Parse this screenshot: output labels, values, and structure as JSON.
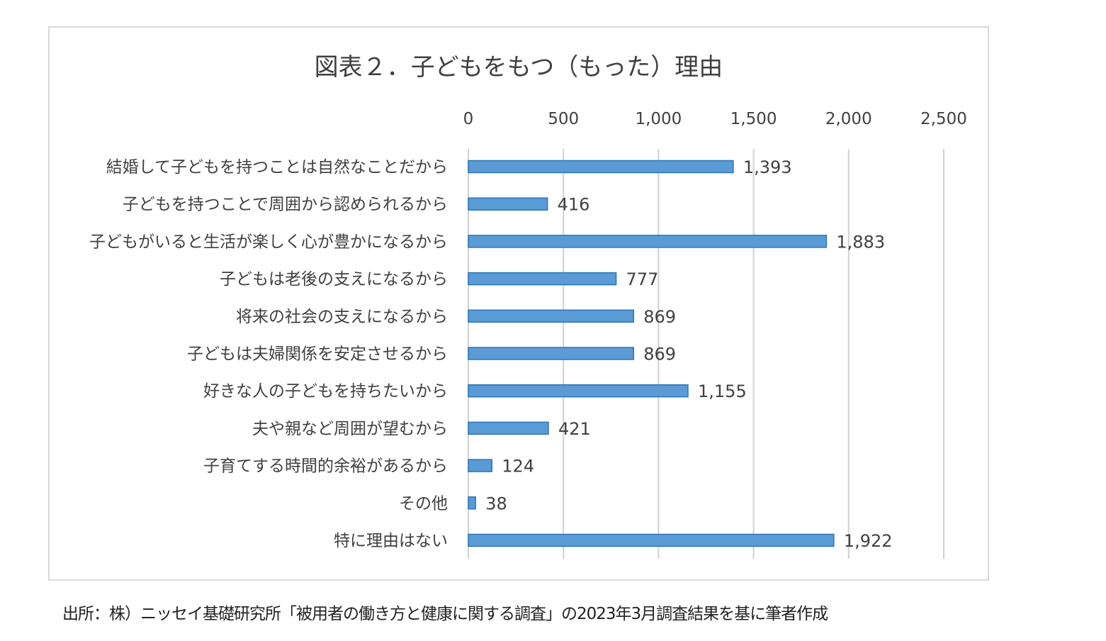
{
  "chart_data": {
    "type": "bar",
    "orientation": "horizontal",
    "title": "図表２．子どもをもつ（もった）理由",
    "categories": [
      "結婚して子どもを持つことは自然なことだから",
      "子どもを持つことで周囲から認められるから",
      "子どもがいると生活が楽しく心が豊かになるから",
      "子どもは老後の支えになるから",
      "将来の社会の支えになるから",
      "子どもは夫婦関係を安定させるから",
      "好きな人の子どもを持ちたいから",
      "夫や親など周囲が望むから",
      "子育てする時間的余裕があるから",
      "その他",
      "特に理由はない"
    ],
    "values": [
      1393,
      416,
      1883,
      777,
      869,
      869,
      1155,
      421,
      124,
      38,
      1922
    ],
    "value_labels": [
      "1,393",
      "416",
      "1,883",
      "777",
      "869",
      "869",
      "1,155",
      "421",
      "124",
      "38",
      "1,922"
    ],
    "xlim": [
      0,
      2500
    ],
    "xticks": [
      0,
      500,
      1000,
      1500,
      2000,
      2500
    ],
    "xtick_labels": [
      "0",
      "500",
      "1,000",
      "1,500",
      "2,000",
      "2,500"
    ],
    "xaxis_position": "top",
    "grid": true,
    "legend": "none",
    "bar_color": "#5b9bd5",
    "bar_edge_color": "#2e75b6"
  },
  "source_note": "出所：株）ニッセイ基礎研究所「被用者の働き方と健康に関する調査」の2023年3月調査結果を基に筆者作成"
}
